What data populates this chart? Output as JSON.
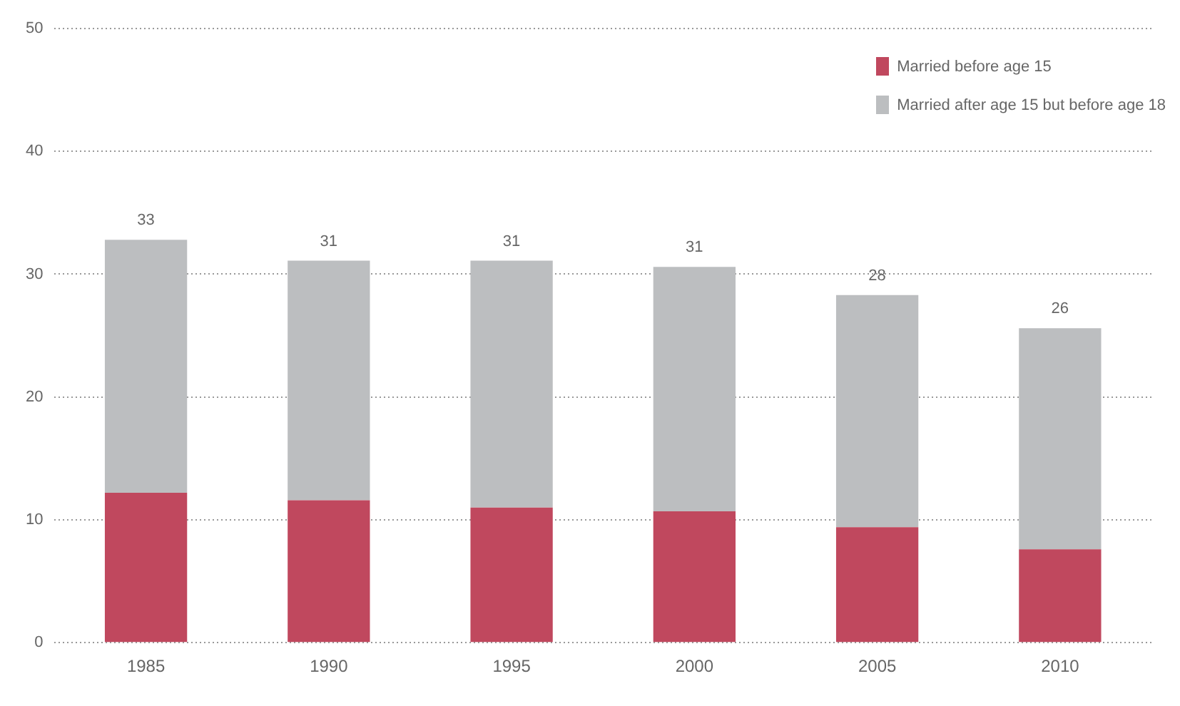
{
  "chart_data": {
    "type": "bar",
    "stacked": true,
    "categories": [
      "1985",
      "1990",
      "1995",
      "2000",
      "2005",
      "2010"
    ],
    "series": [
      {
        "name": "Married before age 15",
        "color": "#c0485e",
        "values": [
          12.2,
          11.6,
          11.0,
          10.7,
          9.4,
          7.6
        ]
      },
      {
        "name": "Married after age 15 but before age 18",
        "color": "#bcbec0",
        "values": [
          20.6,
          19.5,
          20.1,
          19.9,
          18.9,
          18.0
        ]
      }
    ],
    "totals": [
      "33",
      "31",
      "31",
      "31",
      "28",
      "26"
    ],
    "ylim": [
      0,
      50
    ],
    "yticks": [
      0,
      10,
      20,
      30,
      40,
      50
    ],
    "grid": "y",
    "legend": "top right"
  }
}
